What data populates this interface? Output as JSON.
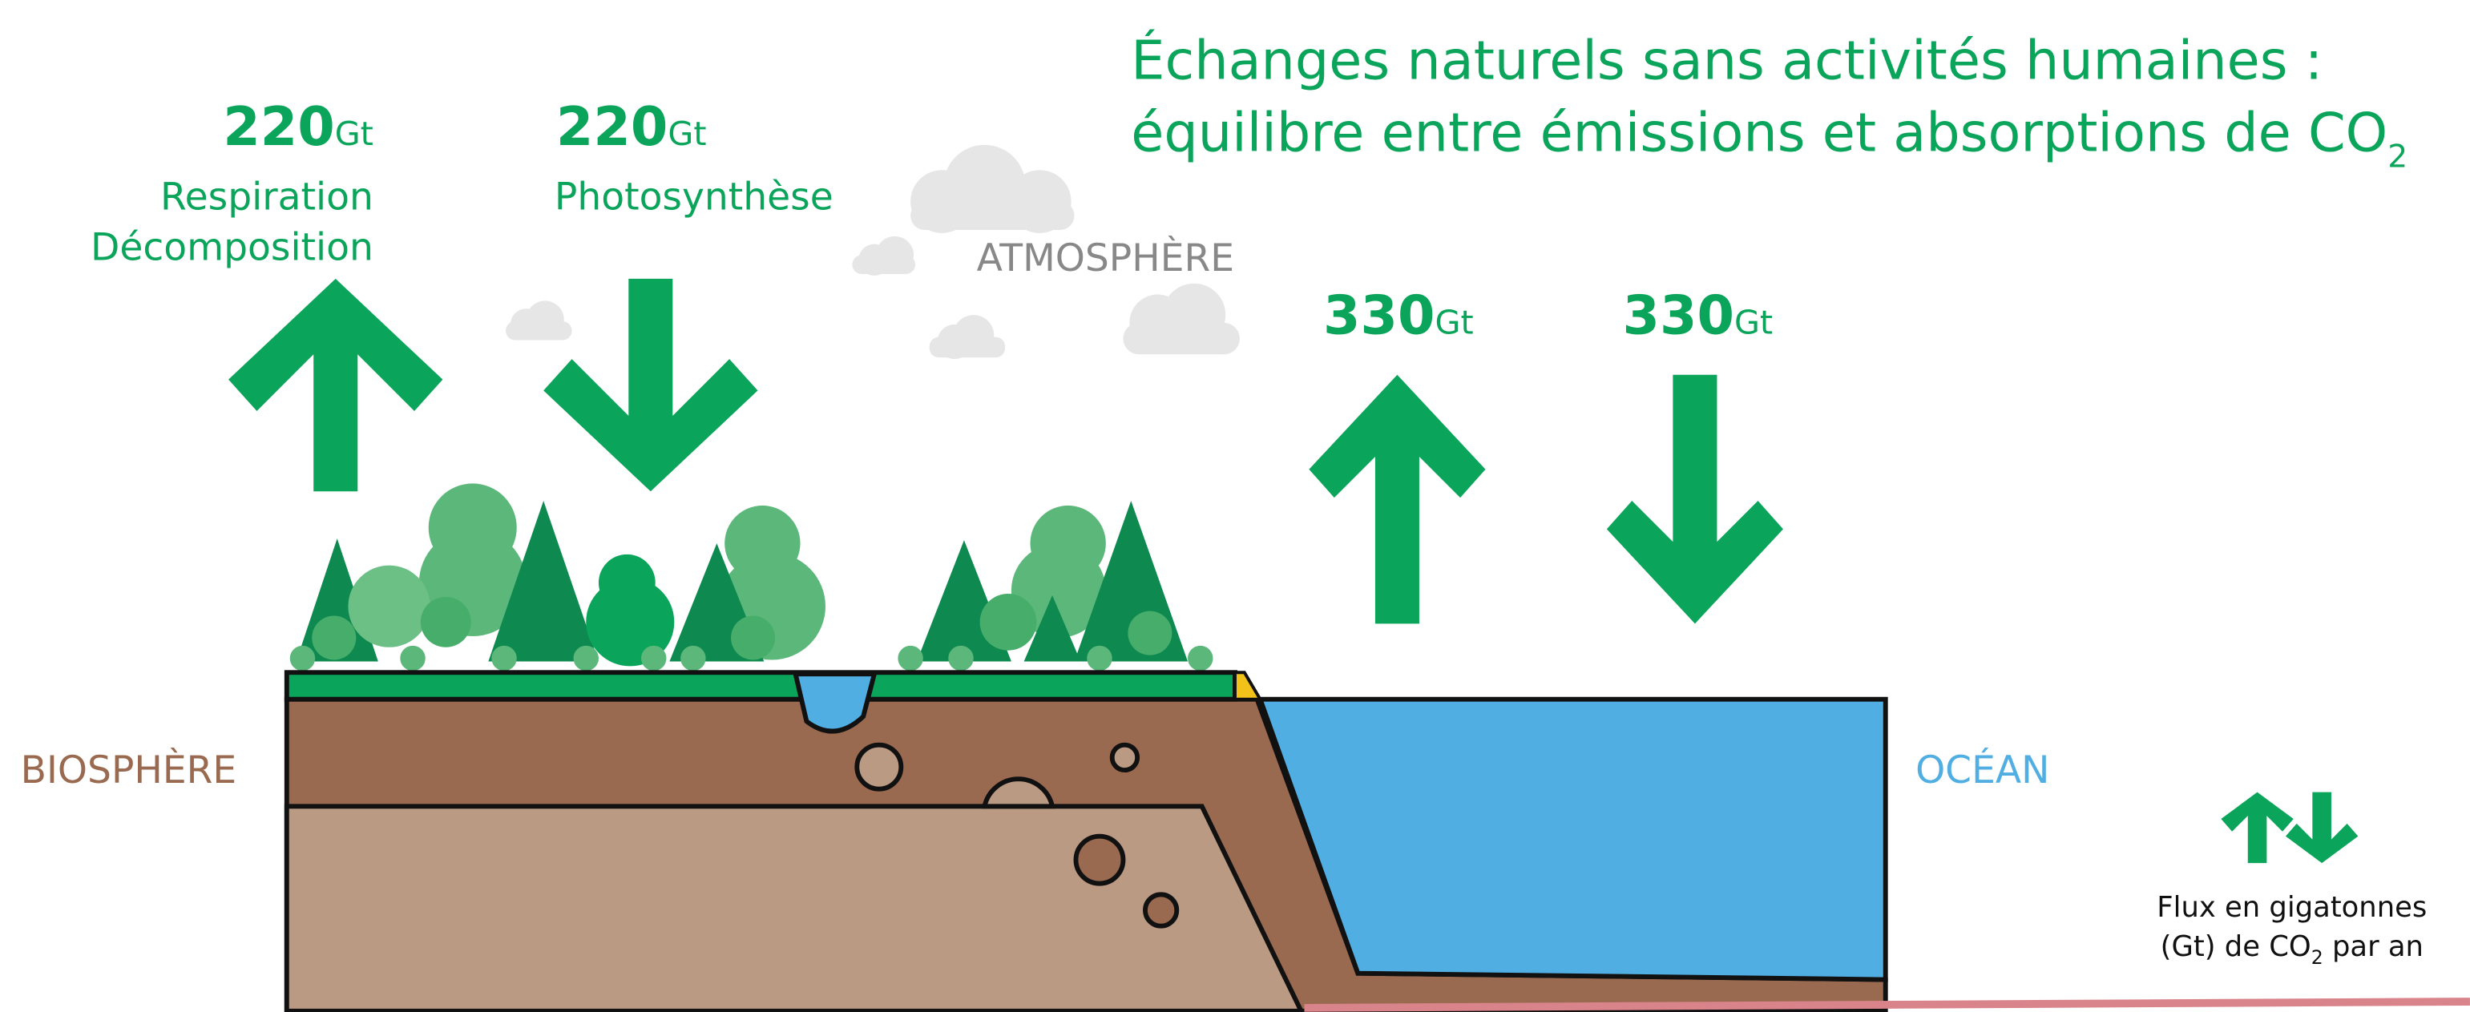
{
  "header": {
    "title_line1": "Échanges naturels sans activités humaines :",
    "title_line2": "équilibre entre émissions et absorptions de CO",
    "title_subscript": "2"
  },
  "flows": [
    {
      "value": "220",
      "unit": "Gt",
      "label_lines": [
        "Respiration",
        "Décomposition"
      ]
    },
    {
      "value": "220",
      "unit": "Gt",
      "label_lines": [
        "Photosynthèse"
      ]
    },
    {
      "value": "330",
      "unit": "Gt"
    },
    {
      "value": "330",
      "unit": "Gt"
    }
  ],
  "zones": {
    "atmosphere": "ATMOSPHÈRE",
    "biosphere": "BIOSPHÈRE",
    "ocean": "OCÉAN"
  },
  "legend": {
    "line1": "Flux en gigatonnes",
    "line2_before": "(Gt) de CO",
    "line2_subscript": "2",
    "line2_after": " par an"
  }
}
